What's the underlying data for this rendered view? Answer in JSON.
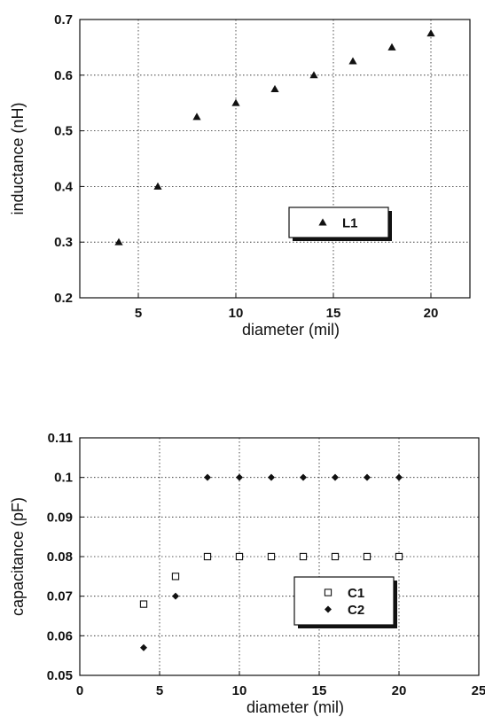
{
  "chart_data": [
    {
      "type": "scatter",
      "xlabel": "diameter (mil)",
      "ylabel": "inductance (nH)",
      "xlim": [
        2,
        22
      ],
      "ylim": [
        0.2,
        0.7
      ],
      "xticks": [
        "5",
        "10",
        "15",
        "20"
      ],
      "xtick_values": [
        5,
        10,
        15,
        20
      ],
      "yticks": [
        "0.2",
        "0.3",
        "0.4",
        "0.5",
        "0.6",
        "0.7"
      ],
      "ytick_values": [
        0.2,
        0.3,
        0.4,
        0.5,
        0.6,
        0.7
      ],
      "grid": true,
      "legend_position": "lower-right",
      "series": [
        {
          "name": "L1",
          "marker": "triangle",
          "color": "#111111",
          "x": [
            4,
            6,
            8,
            10,
            12,
            14,
            16,
            18,
            20
          ],
          "y": [
            0.3,
            0.4,
            0.525,
            0.55,
            0.575,
            0.6,
            0.625,
            0.65,
            0.675
          ]
        }
      ]
    },
    {
      "type": "scatter",
      "xlabel": "diameter (mil)",
      "ylabel": "capacitance (pF)",
      "xlim": [
        0,
        25
      ],
      "ylim": [
        0.05,
        0.11
      ],
      "xticks": [
        "0",
        "5",
        "10",
        "15",
        "20",
        "25"
      ],
      "xtick_values": [
        0,
        5,
        10,
        15,
        20,
        25
      ],
      "yticks": [
        "0.05",
        "0.06",
        "0.07",
        "0.08",
        "0.09",
        "0.1",
        "0.11"
      ],
      "ytick_values": [
        0.05,
        0.06,
        0.07,
        0.08,
        0.09,
        0.1,
        0.11
      ],
      "grid": true,
      "legend_position": "lower-right",
      "series": [
        {
          "name": "C1",
          "marker": "open-square",
          "color": "#111111",
          "x": [
            4,
            6,
            8,
            10,
            12,
            14,
            16,
            18,
            20
          ],
          "y": [
            0.068,
            0.075,
            0.08,
            0.08,
            0.08,
            0.08,
            0.08,
            0.08,
            0.08
          ]
        },
        {
          "name": "C2",
          "marker": "diamond",
          "color": "#111111",
          "x": [
            4,
            6,
            8,
            10,
            12,
            14,
            16,
            18,
            20
          ],
          "y": [
            0.057,
            0.07,
            0.1,
            0.1,
            0.1,
            0.1,
            0.1,
            0.1,
            0.1
          ]
        }
      ]
    }
  ]
}
